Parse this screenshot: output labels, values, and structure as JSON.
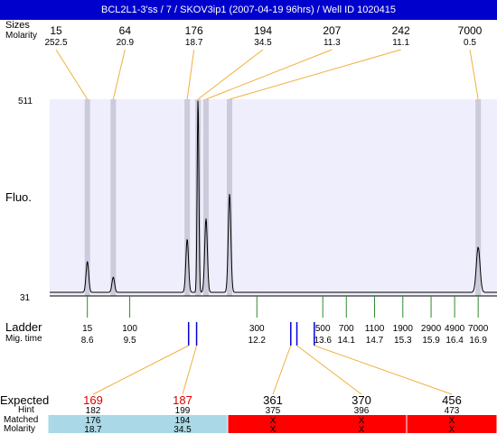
{
  "window_title": "BCL2L1-3'ss / 7 / SKOV3ip1 (2007-04-19 96hrs) / Well ID 1020415",
  "labels": {
    "sizes": "Sizes",
    "molarity": "Molarity",
    "fluo": "Fluo.",
    "ladder": "Ladder",
    "mig_time": "Mig. time",
    "expected": "Expected",
    "hint": "Hint",
    "matched": "Matched",
    "molarity_bottom": "Molarity"
  },
  "colors": {
    "title_bg": "#0000cc",
    "plot_bg": "#eeeefc",
    "highlight_band": "#cbcbdc",
    "peak_line": "#000000",
    "top_connector": "#f0b040",
    "ladder_tick": "#2e8b2e",
    "expected_marker": "#0000dd",
    "expected_red": "#dd0000",
    "matched_ok": "#aad8e6",
    "matched_fail": "#ff0000"
  },
  "chart_data": {
    "type": "line",
    "yaxis": {
      "max_label": "511",
      "min_label": "31",
      "ylim": [
        31,
        511
      ]
    },
    "xlim": [
      7.8,
      17.3
    ],
    "peaks_top": [
      {
        "size": "15",
        "molarity": "252.5",
        "mig_time": 8.6,
        "height": 75
      },
      {
        "size": "64",
        "molarity": "20.9",
        "mig_time": 9.15,
        "height": 37
      },
      {
        "size": "176",
        "molarity": "18.7",
        "mig_time": 10.72,
        "height": 130
      },
      {
        "size": "194",
        "molarity": "34.5",
        "mig_time": 10.95,
        "height": 472
      },
      {
        "size": "207",
        "molarity": "11.3",
        "mig_time": 11.12,
        "height": 180
      },
      {
        "size": "242",
        "molarity": "11.1",
        "mig_time": 11.62,
        "height": 240
      },
      {
        "size": "7000",
        "molarity": "0.5",
        "mig_time": 16.9,
        "height": 110
      }
    ],
    "ladder": [
      {
        "size": "15",
        "mig_time": "8.6",
        "t": 8.6
      },
      {
        "size": "100",
        "mig_time": "9.5",
        "t": 9.5
      },
      {
        "size": "300",
        "mig_time": "12.2",
        "t": 12.2
      },
      {
        "size": "500",
        "mig_time": "13.6",
        "t": 13.6
      },
      {
        "size": "700",
        "mig_time": "14.1",
        "t": 14.1
      },
      {
        "size": "1100",
        "mig_time": "14.7",
        "t": 14.7
      },
      {
        "size": "1900",
        "mig_time": "15.3",
        "t": 15.3
      },
      {
        "size": "2900",
        "mig_time": "15.9",
        "t": 15.9
      },
      {
        "size": "4900",
        "mig_time": "16.4",
        "t": 16.4
      },
      {
        "size": "7000",
        "mig_time": "16.9",
        "t": 16.9
      }
    ],
    "expected": [
      {
        "size": "169",
        "hint": "182",
        "matched": "176",
        "molarity": "18.7",
        "found": true,
        "mig_time": 10.75
      },
      {
        "size": "187",
        "hint": "199",
        "matched": "194",
        "molarity": "34.5",
        "found": true,
        "mig_time": 10.92
      },
      {
        "size": "361",
        "hint": "375",
        "matched": "X",
        "molarity": "X",
        "found": false,
        "mig_time": 12.92
      },
      {
        "size": "370",
        "hint": "396",
        "matched": "X",
        "molarity": "X",
        "found": false,
        "mig_time": 13.05
      },
      {
        "size": "456",
        "hint": "473",
        "matched": "X",
        "molarity": "X",
        "found": false,
        "mig_time": 13.42
      }
    ]
  }
}
